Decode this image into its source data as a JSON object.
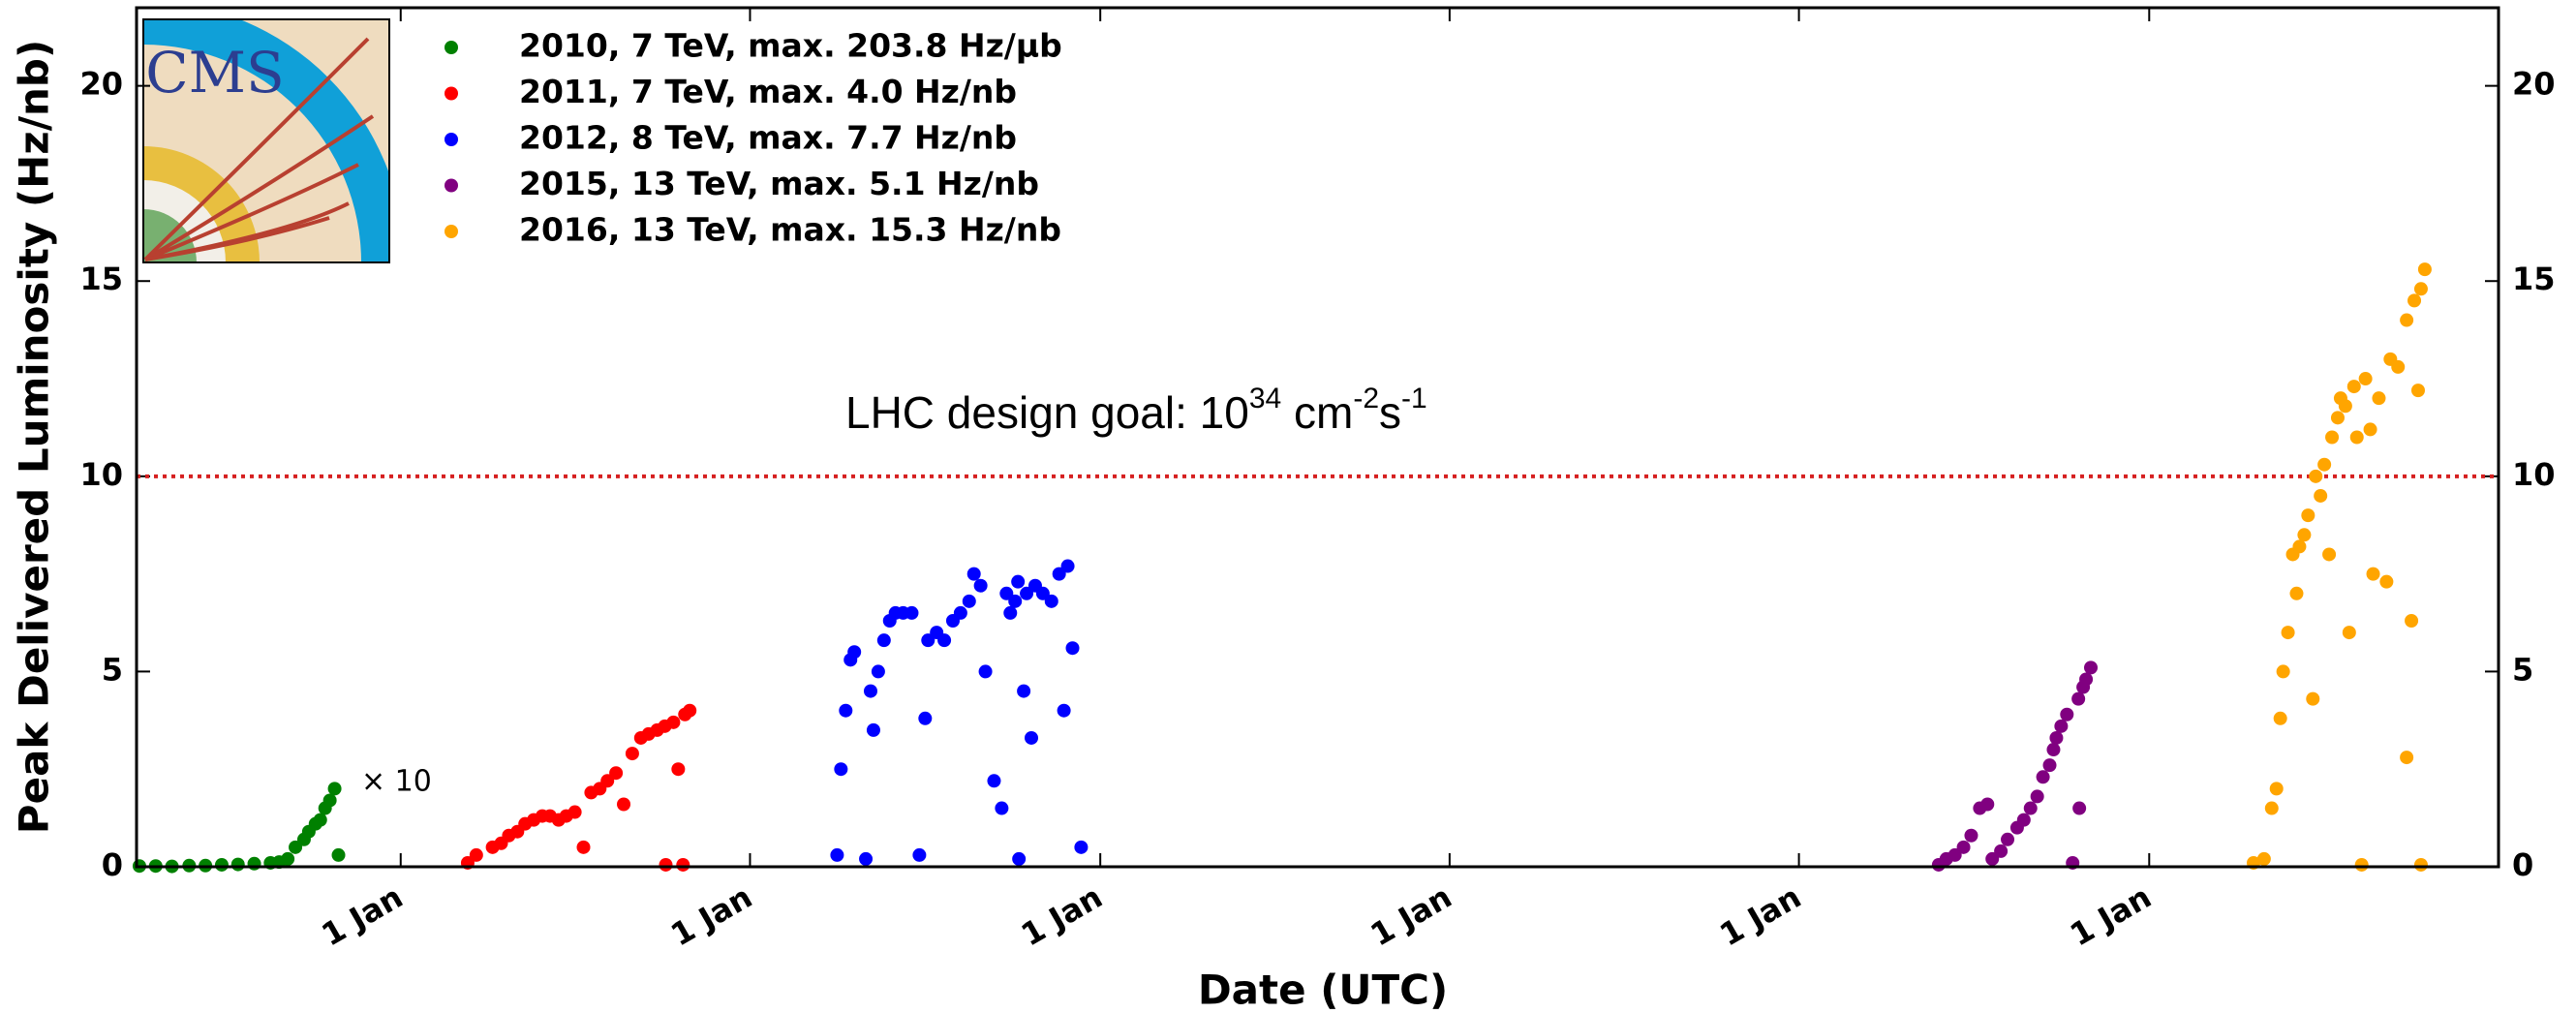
{
  "chart_data": {
    "type": "scatter",
    "x_label": "Date (UTC)",
    "y_label": "Peak Delivered Luminosity (Hz/nb)",
    "logo_text": "CMS",
    "scale_note": "× 10",
    "design_goal": {
      "text": "LHC design goal: 10",
      "exp": "34",
      "unit1": " cm",
      "unit1_exp": "-2",
      "unit2": "s",
      "unit2_exp": "-1",
      "value": 10,
      "color": "#d62020"
    },
    "xlim": [
      89,
      2557
    ],
    "xticks": [
      {
        "value": 365,
        "label": "1 Jan"
      },
      {
        "value": 730,
        "label": "1 Jan"
      },
      {
        "value": 1096,
        "label": "1 Jan"
      },
      {
        "value": 1461,
        "label": "1 Jan"
      },
      {
        "value": 1826,
        "label": "1 Jan"
      },
      {
        "value": 2192,
        "label": "1 Jan"
      }
    ],
    "ylim": [
      0,
      22
    ],
    "yticks": [
      0,
      5,
      10,
      15,
      20
    ],
    "series": [
      {
        "name": "2010, 7 TeV, max. 203.8 Hz/μb",
        "color": "#008000",
        "x": [
          92,
          109,
          126,
          144,
          161,
          178,
          195,
          212,
          229,
          238,
          247,
          255,
          264,
          269,
          276,
          281,
          286,
          291,
          296,
          300
        ],
        "values": [
          0.02,
          0.02,
          0.01,
          0.03,
          0.03,
          0.05,
          0.06,
          0.08,
          0.1,
          0.12,
          0.2,
          0.5,
          0.7,
          0.9,
          1.1,
          1.2,
          1.5,
          1.7,
          2.0,
          0.3
        ]
      },
      {
        "name": "2011, 7 TeV, max. 4.0 Hz/nb",
        "color": "#ff0000",
        "x": [
          435,
          444,
          461,
          470,
          478,
          487,
          495,
          504,
          513,
          521,
          530,
          538,
          547,
          556,
          564,
          573,
          581,
          590,
          598,
          607,
          616,
          624,
          633,
          641,
          650,
          655,
          662,
          667,
          642,
          660
        ],
        "values": [
          0.1,
          0.3,
          0.5,
          0.6,
          0.8,
          0.9,
          1.1,
          1.2,
          1.3,
          1.3,
          1.2,
          1.3,
          1.4,
          0.5,
          1.9,
          2.0,
          2.2,
          2.4,
          1.6,
          2.9,
          3.3,
          3.4,
          3.5,
          3.6,
          3.7,
          2.5,
          3.9,
          4.0,
          0.05,
          0.05
        ]
      },
      {
        "name": "2012, 8 TeV, max. 7.7 Hz/nb",
        "color": "#0000ff",
        "x": [
          821,
          825,
          830,
          835,
          839,
          851,
          856,
          859,
          864,
          870,
          876,
          882,
          890,
          899,
          907,
          913,
          916,
          925,
          933,
          942,
          950,
          959,
          964,
          971,
          976,
          985,
          993,
          998,
          1002,
          1007,
          1010,
          1016,
          1019,
          1024,
          1028,
          1036,
          1045,
          1053,
          1058,
          1062,
          1067,
          1076,
          1011
        ],
        "values": [
          0.3,
          2.5,
          4.0,
          5.3,
          5.5,
          0.2,
          4.5,
          3.5,
          5.0,
          5.8,
          6.3,
          6.5,
          6.5,
          6.5,
          0.3,
          3.8,
          5.8,
          6.0,
          5.8,
          6.3,
          6.5,
          6.8,
          7.5,
          7.2,
          5.0,
          2.2,
          1.5,
          7.0,
          6.5,
          6.8,
          7.3,
          4.5,
          7.0,
          3.3,
          7.2,
          7.0,
          6.8,
          7.5,
          4.0,
          7.7,
          5.6,
          0.5,
          0.2
        ]
      },
      {
        "name": "2015, 13 TeV, max. 5.1 Hz/nb",
        "color": "#800080",
        "x": [
          1972,
          1980,
          1989,
          1998,
          2006,
          2015,
          2023,
          2028,
          2037,
          2044,
          2054,
          2061,
          2068,
          2075,
          2081,
          2088,
          2092,
          2095,
          2100,
          2106,
          2112,
          2118,
          2119,
          2123,
          2126,
          2131
        ],
        "values": [
          0.05,
          0.2,
          0.3,
          0.5,
          0.8,
          1.5,
          1.6,
          0.2,
          0.4,
          0.7,
          1.0,
          1.2,
          1.5,
          1.8,
          2.3,
          2.6,
          3.0,
          3.3,
          3.6,
          3.9,
          0.1,
          4.3,
          1.5,
          4.6,
          4.8,
          5.1
        ]
      },
      {
        "name": "2016, 13 TeV, max. 15.3 Hz/nb",
        "color": "#ffa500",
        "x": [
          2301,
          2312,
          2320,
          2325,
          2329,
          2332,
          2337,
          2342,
          2346,
          2349,
          2354,
          2358,
          2363,
          2366,
          2371,
          2375,
          2380,
          2383,
          2389,
          2392,
          2397,
          2401,
          2406,
          2409,
          2414,
          2418,
          2423,
          2426,
          2432,
          2440,
          2444,
          2452,
          2461,
          2461,
          2466,
          2469,
          2473,
          2476,
          2480,
          2476
        ],
        "values": [
          0.1,
          0.2,
          1.5,
          2.0,
          3.8,
          5.0,
          6.0,
          8.0,
          7.0,
          8.2,
          8.5,
          9.0,
          4.3,
          10.0,
          9.5,
          10.3,
          8.0,
          11.0,
          11.5,
          12.0,
          11.8,
          6.0,
          12.3,
          11.0,
          0.05,
          12.5,
          11.2,
          7.5,
          12.0,
          7.3,
          13.0,
          12.8,
          14.0,
          2.8,
          6.3,
          14.5,
          12.2,
          14.8,
          15.3,
          0.05
        ]
      }
    ]
  }
}
